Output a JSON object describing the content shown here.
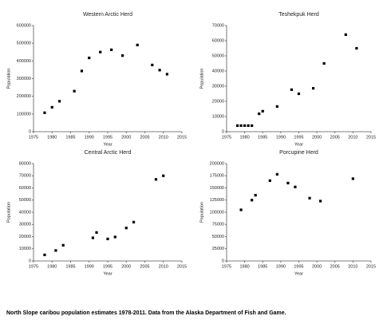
{
  "chart_data": [
    {
      "type": "scatter",
      "title": "Western Arctic Herd",
      "xlabel": "Year",
      "ylabel": "Population",
      "color": "#000000",
      "x": [
        1978,
        1980,
        1982,
        1986,
        1988,
        1990,
        1993,
        1996,
        1999,
        2003,
        2007,
        2009,
        2011
      ],
      "values": [
        107000,
        138000,
        172000,
        229000,
        343000,
        417000,
        450000,
        463000,
        430000,
        490000,
        377000,
        348000,
        325000
      ],
      "xlim": [
        1975,
        2015
      ],
      "xticks": [
        1975,
        1980,
        1985,
        1990,
        1995,
        2000,
        2005,
        2010,
        2015
      ],
      "ylim": [
        0,
        600000
      ],
      "yticks": [
        0,
        100000,
        200000,
        300000,
        400000,
        500000,
        600000
      ]
    },
    {
      "type": "scatter",
      "title": "Teshekpuk Herd",
      "xlabel": "Year",
      "ylabel": "Population",
      "color": "#000000",
      "x": [
        1978,
        1979,
        1980,
        1981,
        1982,
        1984,
        1985,
        1989,
        1993,
        1995,
        1999,
        2002,
        2008,
        2011
      ],
      "values": [
        4000,
        4000,
        4000,
        4000,
        4000,
        11800,
        13500,
        16600,
        27700,
        25000,
        28600,
        45000,
        64000,
        55000
      ],
      "xlim": [
        1975,
        2015
      ],
      "xticks": [
        1975,
        1980,
        1985,
        1990,
        1995,
        2000,
        2005,
        2010,
        2015
      ],
      "ylim": [
        0,
        70000
      ],
      "yticks": [
        0,
        10000,
        20000,
        30000,
        40000,
        50000,
        60000,
        70000
      ]
    },
    {
      "type": "scatter",
      "title": "Central Arctic Herd",
      "xlabel": "Year",
      "ylabel": "Population",
      "color": "#000000",
      "x": [
        1978,
        1981,
        1983,
        1991,
        1992,
        1995,
        1997,
        2000,
        2002,
        2008,
        2010
      ],
      "values": [
        5000,
        8600,
        12900,
        19000,
        23400,
        18100,
        19700,
        27100,
        31900,
        67000,
        70000
      ],
      "xlim": [
        1975,
        2015
      ],
      "xticks": [
        1975,
        1980,
        1985,
        1990,
        1995,
        2000,
        2005,
        2010,
        2015
      ],
      "ylim": [
        0,
        80000
      ],
      "yticks": [
        0,
        10000,
        20000,
        30000,
        40000,
        50000,
        60000,
        70000,
        80000
      ]
    },
    {
      "type": "scatter",
      "title": "Porcupine Herd",
      "xlabel": "Year",
      "ylabel": "Population",
      "color": "#000000",
      "x": [
        1979,
        1982,
        1983,
        1987,
        1989,
        1992,
        1994,
        1998,
        2001,
        2010
      ],
      "values": [
        105000,
        125000,
        135000,
        165000,
        178000,
        160000,
        152000,
        129000,
        123000,
        169000
      ],
      "xlim": [
        1975,
        2015
      ],
      "xticks": [
        1975,
        1980,
        1985,
        1990,
        1995,
        2000,
        2005,
        2010,
        2015
      ],
      "ylim": [
        0,
        200000
      ],
      "yticks": [
        0,
        25000,
        50000,
        75000,
        100000,
        125000,
        150000,
        175000,
        200000
      ]
    }
  ],
  "caption": "North Slope caribou population estimates 1978-2011.  Data from the Alaska Department of Fish and Game."
}
